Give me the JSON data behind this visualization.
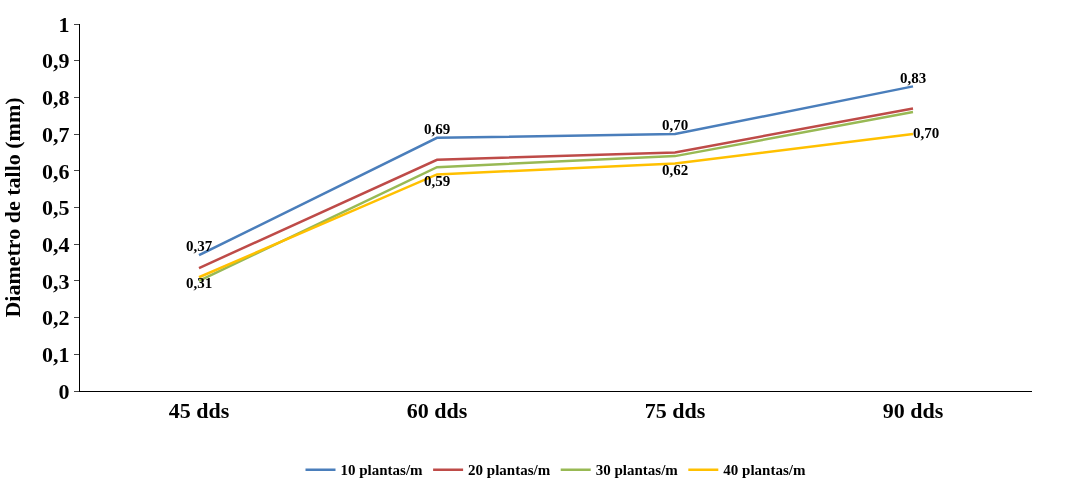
{
  "chart_data": {
    "type": "line",
    "ylabel": "Diametro de tallo (mm)",
    "categories": [
      "45 dds",
      "60 dds",
      "75 dds",
      "90 dds"
    ],
    "ylim": [
      0,
      1
    ],
    "yticks": [
      0,
      {
        "value": 0.1,
        "label": "0,1"
      },
      {
        "value": 0.2,
        "label": "0,2"
      },
      {
        "value": 0.3,
        "label": "0,3"
      },
      {
        "value": 0.4,
        "label": "0,4"
      },
      {
        "value": 0.5,
        "label": "0,5"
      },
      {
        "value": 0.6,
        "label": "0,6"
      },
      {
        "value": 0.7,
        "label": "0,7"
      },
      {
        "value": 0.8,
        "label": "0,8"
      },
      {
        "value": 0.9,
        "label": "0,9"
      },
      1
    ],
    "legend": "bottom",
    "marker": "none",
    "line_style": "solid",
    "series": [
      {
        "name": "10 plantas/m",
        "color": "#4a7ebb",
        "values": [
          0.37,
          0.69,
          0.7,
          0.83
        ],
        "value_labels": [
          "0,37",
          "0,69",
          "0,70",
          "0,83"
        ]
      },
      {
        "name": "20 plantas/m",
        "color": "#be4b48",
        "values": [
          0.335,
          0.63,
          0.65,
          0.77
        ]
      },
      {
        "name": "30 plantas/m",
        "color": "#98b954",
        "values": [
          0.3,
          0.61,
          0.64,
          0.76
        ]
      },
      {
        "name": "40 plantas/m",
        "color": "#ffc000",
        "values": [
          0.31,
          0.59,
          0.62,
          0.7
        ],
        "value_labels": [
          "0,31",
          "0,59",
          "0,62",
          "0,70"
        ]
      }
    ]
  }
}
